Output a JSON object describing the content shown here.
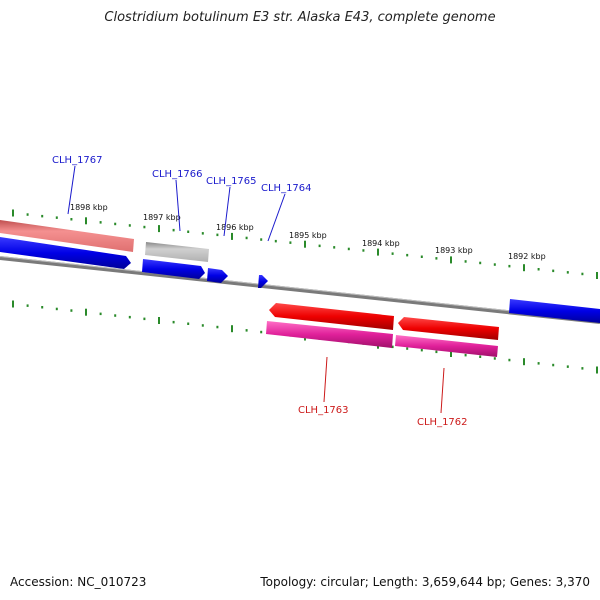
{
  "title": "Clostridium botulinum E3 str. Alaska E43, complete genome",
  "footer": {
    "accession": "Accession: NC_010723",
    "summary": "Topology: circular; Length: 3,659,644 bp; Genes: 3,370"
  },
  "colors": {
    "forward_cds": "#0000ee",
    "reverse_cds": "#ee0000",
    "reverse_rna": "#e0209a",
    "pseudo_light_red": "#ef7f7f",
    "pseudo_gray": "#b8b8b8",
    "backbone": "#7a7a7a",
    "tick": "#2a8a2a",
    "label_forward": "#1a1acc",
    "label_reverse": "#cc1a1a"
  },
  "tick_labels": [
    "1898 kbp",
    "1897 kbp",
    "1896 kbp",
    "1895 kbp",
    "1894 kbp",
    "1893 kbp",
    "1892 kbp"
  ],
  "gene_labels": {
    "forward": [
      "CLH_1767",
      "CLH_1766",
      "CLH_1765",
      "CLH_1764"
    ],
    "reverse": [
      "CLH_1763",
      "CLH_1762"
    ]
  }
}
